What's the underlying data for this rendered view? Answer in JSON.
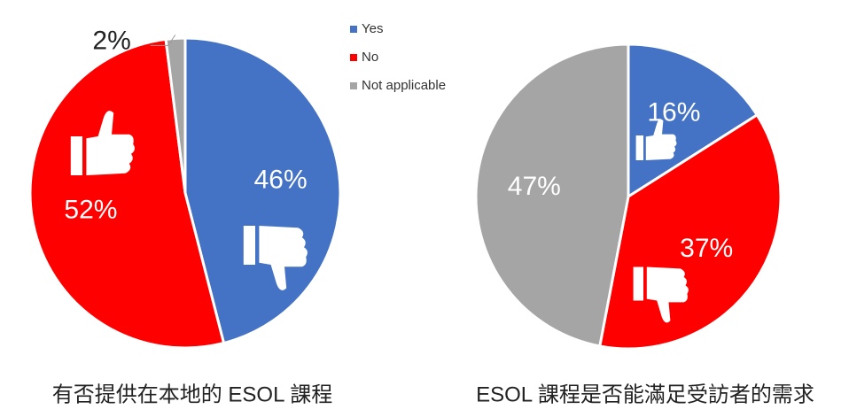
{
  "chart_data": [
    {
      "type": "pie",
      "title": "有否提供在本地的 ESOL 課程",
      "categories": [
        "Yes",
        "No",
        "Not applicable"
      ],
      "values": [
        46,
        52,
        2
      ],
      "value_labels": [
        "46%",
        "52%",
        "2%"
      ],
      "colors": [
        "#4472c4",
        "#ff0000",
        "#a5a5a5"
      ],
      "legend": "top-right"
    },
    {
      "type": "pie",
      "title": "ESOL 課程是否能滿足受訪者的需求",
      "categories": [
        "Yes",
        "No",
        "Not applicable"
      ],
      "values": [
        16,
        37,
        47
      ],
      "value_labels": [
        "16%",
        "37%",
        "47%"
      ],
      "colors": [
        "#4472c4",
        "#ff0000",
        "#a5a5a5"
      ]
    }
  ]
}
